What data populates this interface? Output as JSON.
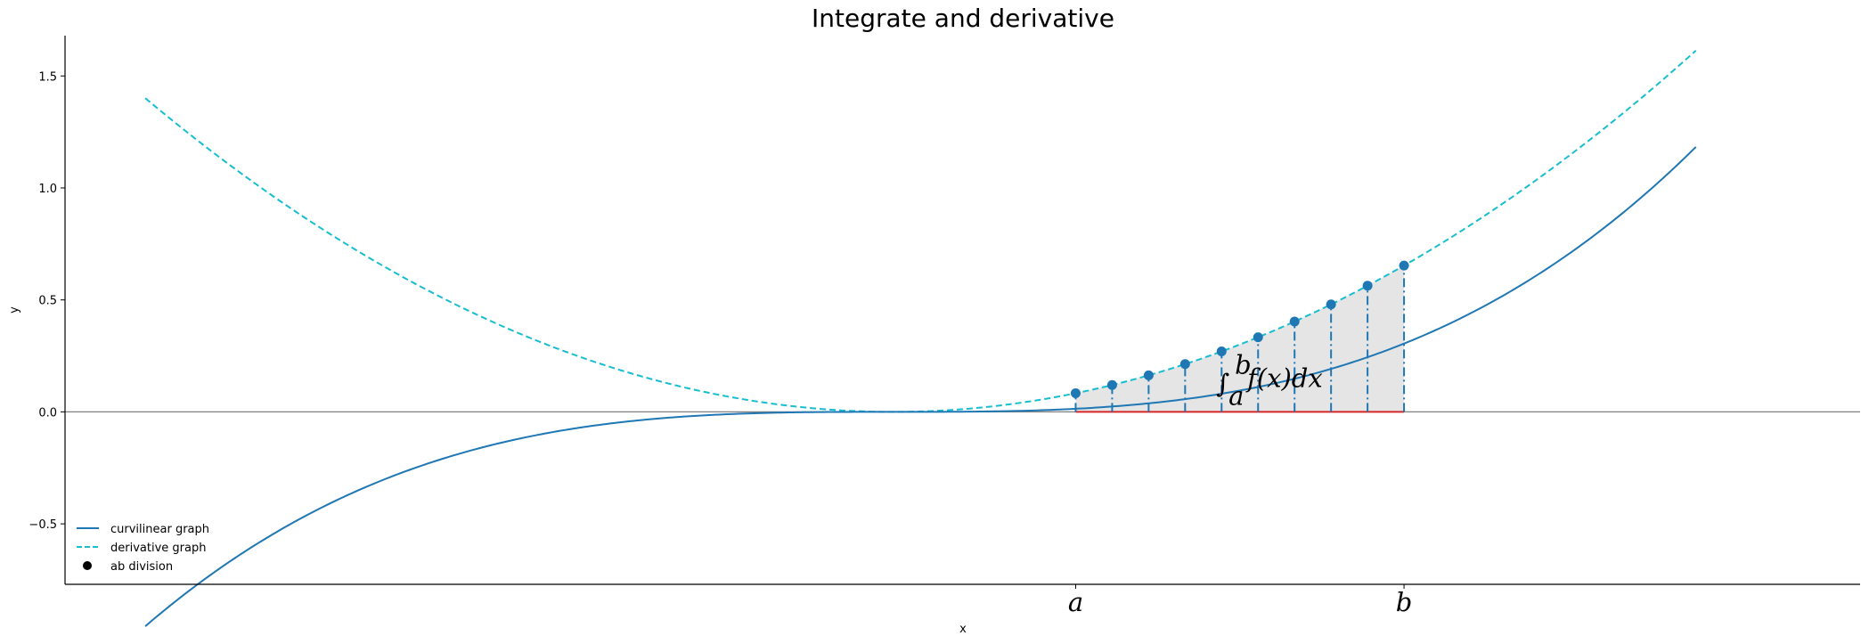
{
  "chart_data": {
    "type": "line",
    "title": "Integrate and derivative",
    "xlabel": "x",
    "ylabel": "y",
    "xlim": [
      -2.27,
      2.65
    ],
    "ylim": [
      -0.77,
      1.68
    ],
    "yticks": [
      -0.5,
      0.0,
      0.5,
      1.0,
      1.5
    ],
    "ytick_labels": [
      "−0.5",
      "0.0",
      "0.5",
      "1.0",
      "1.5"
    ],
    "xticks": [
      0.5,
      1.4
    ],
    "xtick_labels": [
      "a",
      "b"
    ],
    "x_range": [
      -2.05,
      2.2
    ],
    "series": [
      {
        "name": "curvilinear graph",
        "formula": "x^3/9",
        "style": "solid",
        "color": "#1f77b4"
      },
      {
        "name": "derivative graph",
        "formula": "x^2/3",
        "style": "dashed",
        "color": "#17becf"
      },
      {
        "name": "ab division",
        "style": "markers",
        "color": "#1f77b4",
        "x": [
          0.5,
          0.6,
          0.7,
          0.8,
          0.9,
          1.0,
          1.1,
          1.2,
          1.3,
          1.4
        ],
        "y": [
          0.0833,
          0.12,
          0.1633,
          0.2133,
          0.27,
          0.3333,
          0.4033,
          0.48,
          0.5633,
          0.6533
        ]
      }
    ],
    "shaded_region": {
      "from": 0.5,
      "to": 1.4,
      "color": "#e5e5e5"
    },
    "baseline_segment": {
      "from": 0.5,
      "to": 1.4,
      "color": "#d62728"
    },
    "annotation": {
      "text_integral": "∫",
      "text_lower": "a",
      "text_upper": "b",
      "text_body": "f(x)dx",
      "x": 0.88,
      "y": 0.11
    },
    "legend": {
      "location": "lower-left",
      "entries": [
        "curvilinear graph",
        "derivative graph",
        "ab division"
      ]
    },
    "grid": false
  }
}
